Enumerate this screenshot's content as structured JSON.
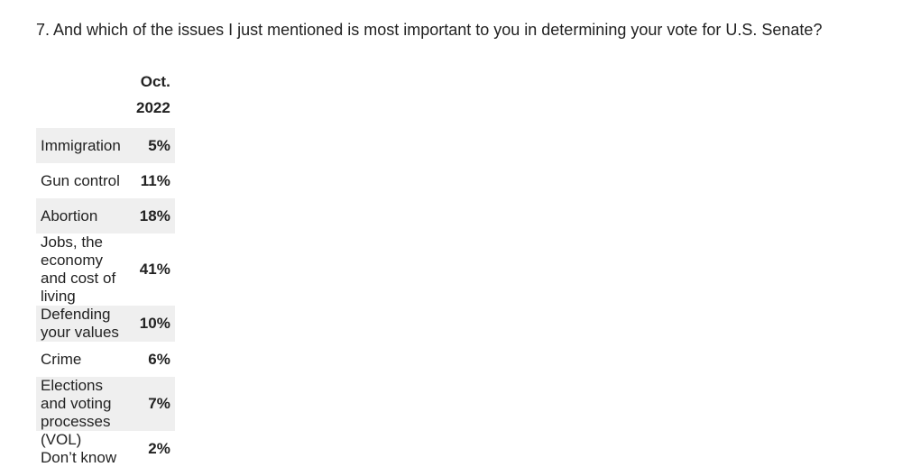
{
  "question": "7.  And which of the issues I just mentioned is most important to you in determining your vote for U.S. Senate?",
  "table": {
    "header": "Oct. 2022",
    "rows": [
      [
        "Immigration",
        "5%"
      ],
      [
        "Gun control",
        "11%"
      ],
      [
        "Abortion",
        "18%"
      ],
      [
        "Jobs, the economy and cost of living",
        "41%"
      ],
      [
        "Defending your values",
        "10%"
      ],
      [
        "Crime",
        "6%"
      ],
      [
        "Elections and voting processes",
        "7%"
      ],
      [
        "(VOL) Don’t know",
        "2%"
      ]
    ]
  }
}
